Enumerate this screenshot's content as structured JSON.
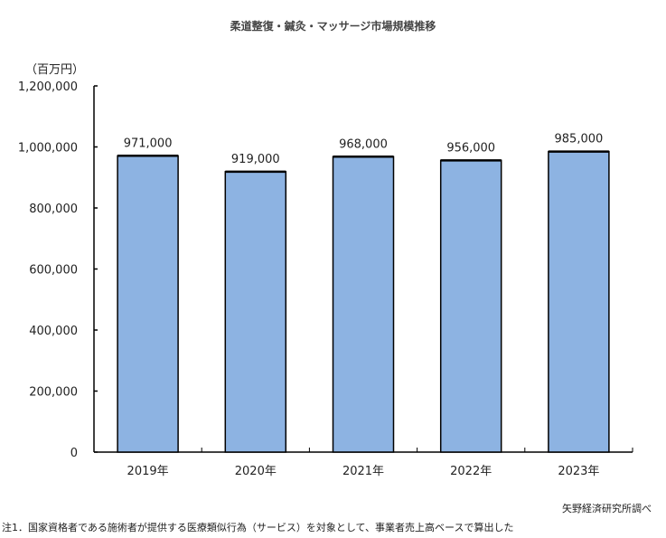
{
  "chart_data": {
    "type": "bar",
    "title": "柔道整復・鍼灸・マッサージ市場規模推移",
    "ylabel": "（百万円）",
    "xlabel": "",
    "categories": [
      "2019年",
      "2020年",
      "2021年",
      "2022年",
      "2023年"
    ],
    "values": [
      971000,
      919000,
      968000,
      956000,
      985000
    ],
    "data_labels": [
      "971,000",
      "919,000",
      "968,000",
      "956,000",
      "985,000"
    ],
    "ylim": [
      0,
      1200000
    ],
    "yticks": [
      0,
      200000,
      400000,
      600000,
      800000,
      1000000,
      1200000
    ],
    "ytick_labels": [
      "0",
      "200,000",
      "400,000",
      "600,000",
      "800,000",
      "1,000,000",
      "1,200,000"
    ],
    "grid": false,
    "bar_color": "#8db3e2",
    "bar_edge_color": "#000000"
  },
  "source": "矢野経済研究所調べ",
  "note": "注1．国家資格者である施術者が提供する医療類似行為（サービス）を対象として、事業者売上高ベースで算出した"
}
